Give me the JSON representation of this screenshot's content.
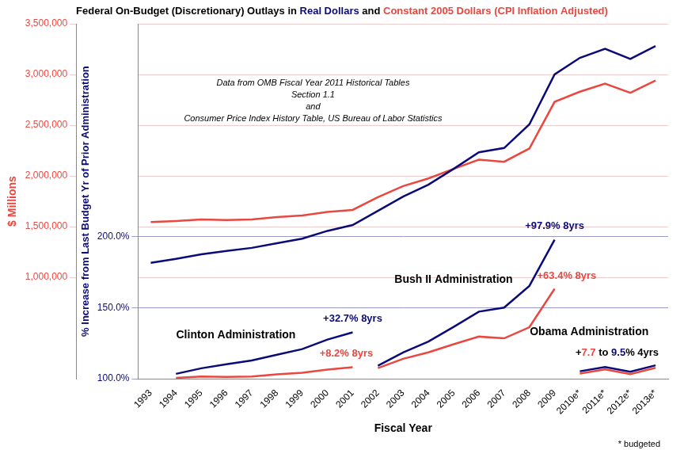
{
  "chart_data": {
    "type": "line",
    "title": "Federal On-Budget (Discretionary) Outlays in Real Dollars and Constant 2005 Dollars (CPI Inflation Adjusted)",
    "xlabel": "Fiscal Year",
    "ylabel": "$ Millions",
    "y2label": "% Increase from Last Budget Yr of Prior Administration",
    "categories": [
      "1993",
      "1994",
      "1995",
      "1996",
      "1997",
      "1998",
      "1999",
      "2000",
      "2001",
      "2002",
      "2003",
      "2004",
      "2005",
      "2006",
      "2007",
      "2008",
      "2009",
      "2010e*",
      "2011e*",
      "2012e*",
      "2013e*"
    ],
    "series": [
      {
        "name": "Real Dollars",
        "color": "#0a0a78",
        "values": [
          1142800,
          1182400,
          1227100,
          1259600,
          1290600,
          1335900,
          1381100,
          1458200,
          1516000,
          1655200,
          1796900,
          1913300,
          2069700,
          2233000,
          2275000,
          2507800,
          3000700,
          3163700,
          3253300,
          3153300,
          3280000
        ]
      },
      {
        "name": "Constant 2005 Dollars (CPI Inflation Adjusted)",
        "color": "#e8483f",
        "values": [
          1545000,
          1555000,
          1570000,
          1565000,
          1570000,
          1595000,
          1610000,
          1645000,
          1665000,
          1790000,
          1900000,
          1975000,
          2070000,
          2160000,
          2140000,
          2270000,
          2730000,
          2830000,
          2910000,
          2820000,
          2940000
        ]
      },
      {
        "name": "Clinton Administration",
        "color": "#0a0a78",
        "axis": "y2",
        "values": [
          null,
          103.5,
          107.4,
          110.2,
          112.9,
          116.9,
          120.9,
          127.6,
          132.7,
          null,
          null,
          null,
          null,
          null,
          null,
          null,
          null,
          null,
          null,
          null,
          null
        ]
      },
      {
        "name": "Clinton Administration",
        "color": "#e8483f",
        "axis": "y2",
        "values": [
          null,
          100.6,
          101.6,
          101.3,
          101.6,
          103.2,
          104.2,
          106.5,
          108.2,
          null,
          null,
          null,
          null,
          null,
          null,
          null,
          null,
          null,
          null,
          null,
          null
        ]
      },
      {
        "name": "Bush II Administration",
        "color": "#0a0a78",
        "axis": "y2",
        "values": [
          null,
          null,
          null,
          null,
          null,
          null,
          null,
          null,
          null,
          109.2,
          118.5,
          126.2,
          136.5,
          147.3,
          150.1,
          165.4,
          197.9,
          null,
          null,
          null,
          null
        ]
      },
      {
        "name": "Bush II Administration",
        "color": "#e8483f",
        "axis": "y2",
        "values": [
          null,
          null,
          null,
          null,
          null,
          null,
          null,
          null,
          null,
          107.5,
          114.1,
          118.6,
          124.3,
          129.7,
          128.5,
          136.3,
          163.4,
          null,
          null,
          null,
          null
        ]
      },
      {
        "name": "Obama Administration",
        "color": "#0a0a78",
        "axis": "y2",
        "values": [
          null,
          null,
          null,
          null,
          null,
          null,
          null,
          null,
          null,
          null,
          null,
          null,
          null,
          null,
          null,
          null,
          null,
          105.3,
          108.3,
          105.0,
          109.5
        ]
      },
      {
        "name": "Obama Administration",
        "color": "#e8483f",
        "axis": "y2",
        "values": [
          null,
          null,
          null,
          null,
          null,
          null,
          null,
          null,
          null,
          null,
          null,
          null,
          null,
          null,
          null,
          null,
          null,
          103.7,
          106.6,
          103.3,
          107.7
        ]
      }
    ],
    "ylim": [
      0,
      3500000
    ],
    "yticks": [
      {
        "value": 1000000,
        "label": "1,000,000"
      },
      {
        "value": 1500000,
        "label": "1,500,000"
      },
      {
        "value": 2000000,
        "label": "2,000,000"
      },
      {
        "value": 2500000,
        "label": "2,500,000"
      },
      {
        "value": 3000000,
        "label": "3,000,000"
      },
      {
        "value": 3500000,
        "label": "3,500,000"
      }
    ],
    "y2lim": [
      100,
      350
    ],
    "y2ticks": [
      {
        "value": 100,
        "label": "100.0%"
      },
      {
        "value": 150,
        "label": "150.0%"
      },
      {
        "value": 200,
        "label": "200.0%"
      }
    ],
    "grid": true,
    "annotations": [
      {
        "parts": [
          {
            "text": "+32.7% 8yrs",
            "color": "#0a0a78"
          }
        ]
      },
      {
        "parts": [
          {
            "text": "+8.2% 8yrs",
            "color": "#e8483f"
          }
        ]
      },
      {
        "parts": [
          {
            "text": "+97.9% 8yrs",
            "color": "#0a0a78"
          }
        ]
      },
      {
        "parts": [
          {
            "text": "+63.4% 8yrs",
            "color": "#e8483f"
          }
        ]
      },
      {
        "parts": [
          {
            "text": "+",
            "color": "#000000"
          },
          {
            "text": "7.7",
            "color": "#e8483f"
          },
          {
            "text": " to ",
            "color": "#000000"
          },
          {
            "text": "9.5",
            "color": "#0a0a78"
          },
          {
            "text": "% 4yrs",
            "color": "#000000"
          }
        ]
      }
    ],
    "source_note": [
      "Data from OMB Fiscal Year 2011 Historical Tables",
      "Section 1.1",
      "and",
      "Consumer Price Index History Table, US Bureau of Labor Statistics"
    ],
    "footnote": "* budgeted"
  }
}
